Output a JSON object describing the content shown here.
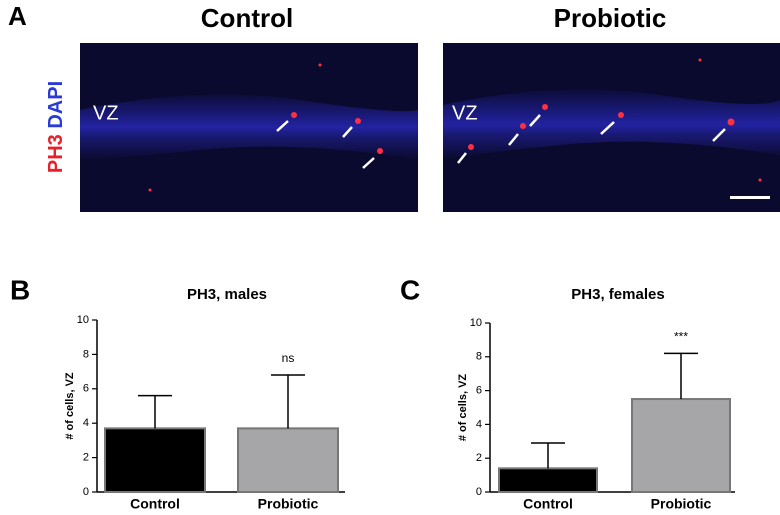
{
  "panel_a": {
    "label": "A",
    "columns": [
      "Control",
      "Probiotic"
    ],
    "stain": [
      "PH3",
      "DAPI"
    ],
    "stain_colors": [
      "#e8202a",
      "#2a3bd6"
    ],
    "region_labels": [
      "VZ",
      "VZ"
    ]
  },
  "chart_data": [
    {
      "panel": "B",
      "type": "bar",
      "title": "PH3, males",
      "y_label": "# of cells, VZ",
      "categories": [
        "Control",
        "Probiotic"
      ],
      "values": [
        3.7,
        3.7
      ],
      "errors": [
        1.9,
        3.1
      ],
      "colors": [
        "#000000",
        "#a6a6a8"
      ],
      "annotations": [
        null,
        "ns"
      ],
      "ylim": [
        0,
        10
      ],
      "yticks": [
        0,
        2,
        4,
        6,
        8,
        10
      ]
    },
    {
      "panel": "C",
      "type": "bar",
      "title": "PH3, females",
      "y_label": "# of cells, VZ",
      "categories": [
        "Control",
        "Probiotic"
      ],
      "values": [
        1.4,
        5.5
      ],
      "errors": [
        1.5,
        2.7
      ],
      "colors": [
        "#000000",
        "#a6a6a8"
      ],
      "annotations": [
        null,
        "***"
      ],
      "ylim": [
        0,
        10
      ],
      "yticks": [
        0,
        2,
        4,
        6,
        8,
        10
      ]
    }
  ]
}
